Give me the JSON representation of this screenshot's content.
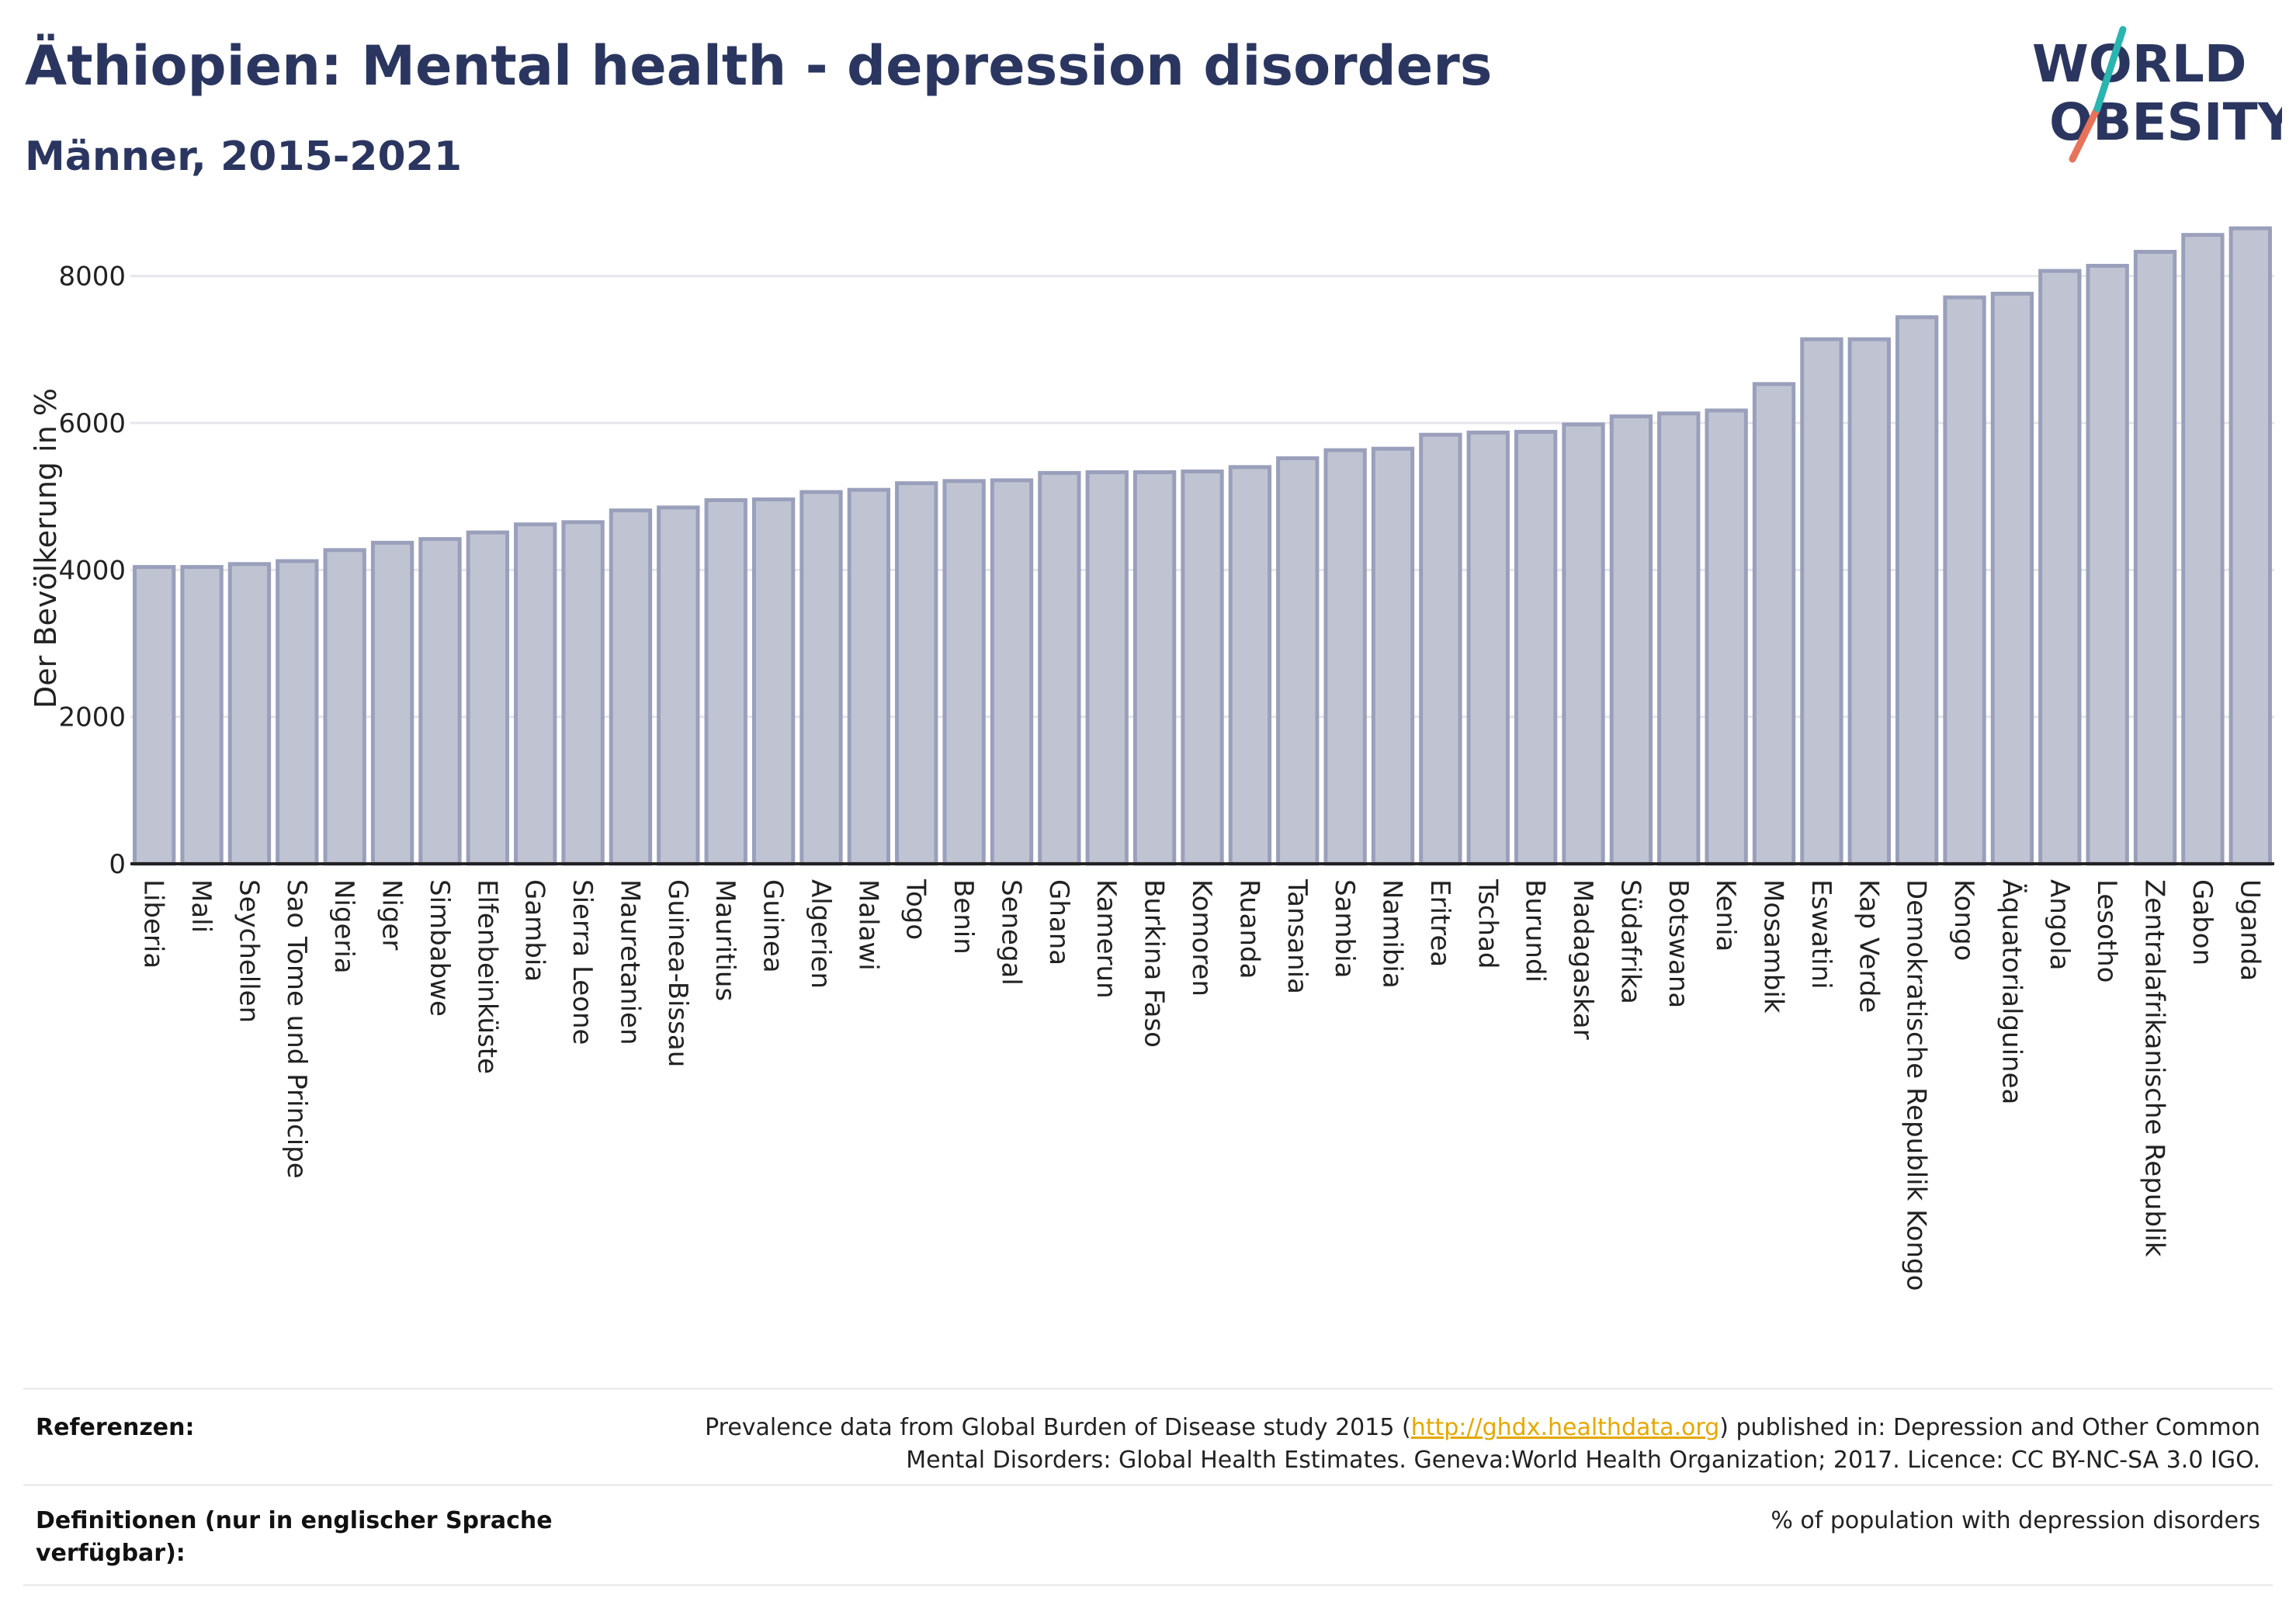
{
  "title": "Äthiopien: Mental health - depression disorders",
  "subtitle": "Männer, 2015-2021",
  "logo": {
    "line1": "WORLD",
    "line2": "OBESITY",
    "accent_teal": "#2ab5b0",
    "accent_coral": "#e8735a",
    "text_color": "#2b3660"
  },
  "colors": {
    "bar_fill": "#c0c4d2",
    "bar_stroke": "#9aa0bb",
    "grid": "#e6e6ea",
    "axis": "#222222"
  },
  "chart_data": {
    "type": "bar",
    "title": "Äthiopien: Mental health - depression disorders",
    "xlabel": "",
    "ylabel": "Der Bevölkerung in %",
    "ylim": [
      0,
      8800
    ],
    "yticks": [
      0,
      2000,
      4000,
      6000,
      8000
    ],
    "grid": true,
    "categories": [
      "Liberia",
      "Mali",
      "Seychellen",
      "Sao Tome und Principe",
      "Nigeria",
      "Niger",
      "Simbabwe",
      "Elfenbeinküste",
      "Gambia",
      "Sierra Leone",
      "Mauretanien",
      "Guinea-Bissau",
      "Mauritius",
      "Guinea",
      "Algerien",
      "Malawi",
      "Togo",
      "Benin",
      "Senegal",
      "Ghana",
      "Kamerun",
      "Burkina Faso",
      "Komoren",
      "Ruanda",
      "Tansania",
      "Sambia",
      "Namibia",
      "Eritrea",
      "Tschad",
      "Burundi",
      "Madagaskar",
      "Südafrika",
      "Botswana",
      "Kenia",
      "Mosambik",
      "Eswatini",
      "Kap Verde",
      "Demokratische Republik Kongo",
      "Kongo",
      "Äquatorialguinea",
      "Angola",
      "Lesotho",
      "Zentralafrikanische Republik",
      "Gabon",
      "Uganda"
    ],
    "values": [
      4040,
      4040,
      4080,
      4120,
      4270,
      4370,
      4420,
      4510,
      4620,
      4650,
      4810,
      4850,
      4950,
      4960,
      5060,
      5090,
      5180,
      5210,
      5220,
      5320,
      5330,
      5330,
      5340,
      5400,
      5520,
      5630,
      5650,
      5840,
      5870,
      5880,
      5980,
      6090,
      6130,
      6170,
      6530,
      7140,
      7140,
      7440,
      7710,
      7760,
      8070,
      8140,
      8330,
      8560,
      8650
    ]
  },
  "footer": {
    "references_label": "Referenzen:",
    "references_line1_before": "Prevalence data from Global Burden of Disease study 2015 (",
    "references_link": "http://ghdx.healthdata.org",
    "references_line1_after": ") published in: Depression and Other Common",
    "references_line2": "Mental Disorders: Global Health Estimates. Geneva:World Health Organization; 2017. Licence: CC BY-NC-SA 3.0 IGO.",
    "definitions_label": "Definitionen (nur in englischer Sprache verfügbar):",
    "definitions_text": "% of population with depression disorders"
  }
}
